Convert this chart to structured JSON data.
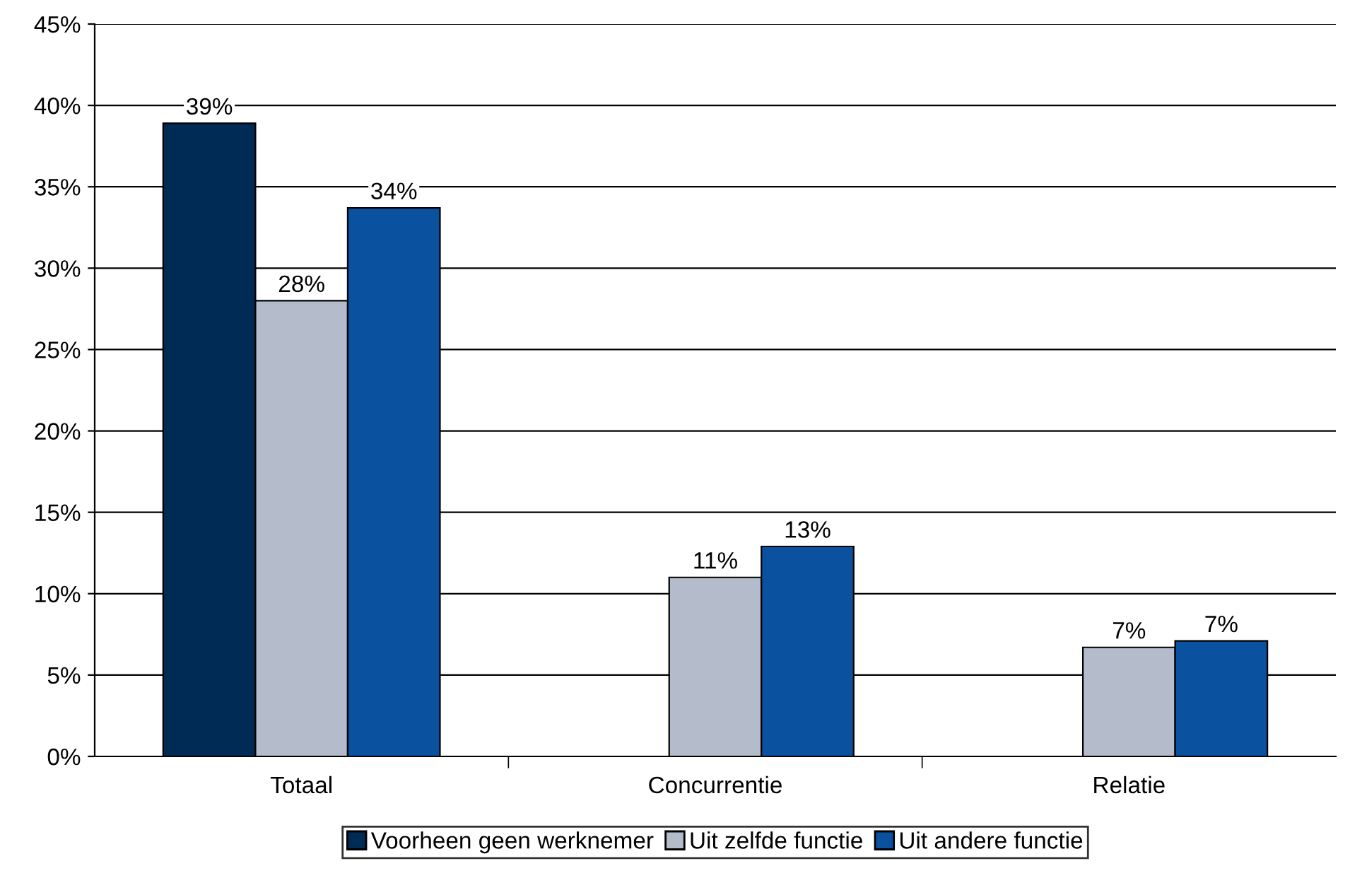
{
  "chart_data": {
    "type": "bar",
    "categories": [
      "Totaal",
      "Concurrentie",
      "Relatie"
    ],
    "series": [
      {
        "name": "Voorheen geen werknemer",
        "color": "#002b55",
        "values": [
          38.9,
          null,
          null
        ],
        "value_labels": [
          "39%",
          null,
          null
        ]
      },
      {
        "name": "Uit zelfde functie",
        "color": "#b4bccc",
        "values": [
          28.0,
          11.0,
          6.7
        ],
        "value_labels": [
          "28%",
          "11%",
          "7%"
        ]
      },
      {
        "name": "Uit andere functie",
        "color": "#0a52a0",
        "values": [
          33.7,
          12.9,
          7.1
        ],
        "value_labels": [
          "34%",
          "13%",
          "7%"
        ]
      }
    ],
    "ylim": [
      0,
      45
    ],
    "yticks": [
      {
        "value": 0,
        "label": "0%"
      },
      {
        "value": 5,
        "label": "5%"
      },
      {
        "value": 10,
        "label": "10%"
      },
      {
        "value": 15,
        "label": "15%"
      },
      {
        "value": 20,
        "label": "20%"
      },
      {
        "value": 25,
        "label": "25%"
      },
      {
        "value": 30,
        "label": "30%"
      },
      {
        "value": 35,
        "label": "35%"
      },
      {
        "value": 40,
        "label": "40%"
      },
      {
        "value": 45,
        "label": "45%"
      }
    ],
    "grid": "y",
    "legend": "bottom"
  }
}
